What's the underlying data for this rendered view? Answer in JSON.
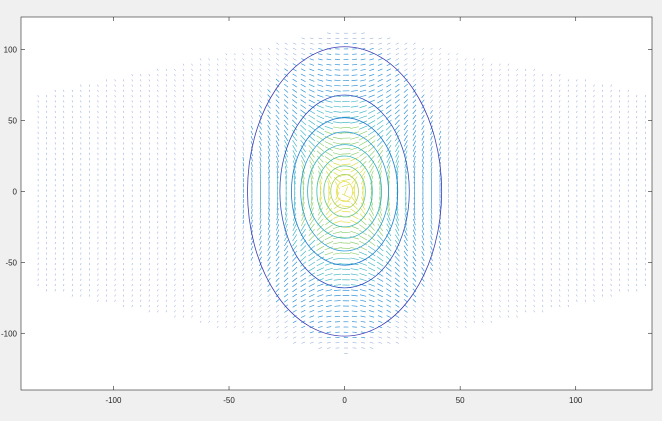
{
  "chart_data": {
    "type": "contour",
    "description": "Contour plot of an elliptical field centered at origin with overlaid quiver (vector field) arrows",
    "xlim": [
      -140,
      133
    ],
    "ylim": [
      -140,
      123
    ],
    "xticks": [
      -100,
      -50,
      0,
      50,
      100
    ],
    "yticks": [
      100,
      50,
      0,
      -50,
      -100
    ],
    "grid": false,
    "title": "",
    "xlabel": "",
    "ylabel": "",
    "contour_levels": [
      {
        "a": 42,
        "b": 102,
        "color": "#3b3bb5"
      },
      {
        "a": 28,
        "b": 68,
        "color": "#2f4fc0"
      },
      {
        "a": 23,
        "b": 52,
        "color": "#1f7ad0"
      },
      {
        "a": 19,
        "b": 42,
        "color": "#2a98d8"
      },
      {
        "a": 16,
        "b": 33,
        "color": "#30acc8"
      },
      {
        "a": 12,
        "b": 25,
        "color": "#3dbbb0"
      },
      {
        "a": 9,
        "b": 18,
        "color": "#66c890"
      },
      {
        "a": 6,
        "b": 12,
        "color": "#a8d060"
      },
      {
        "a": 3.5,
        "b": 7,
        "color": "#e8e040"
      }
    ],
    "quiver": {
      "grid_step": 3.7,
      "extent_x": [
        -140,
        133
      ],
      "extent_y": [
        -140,
        123
      ],
      "colors": [
        "#1a4fb0",
        "#2a8fd6",
        "#3fb6c6",
        "#8fcf70",
        "#e0dc40"
      ]
    }
  }
}
